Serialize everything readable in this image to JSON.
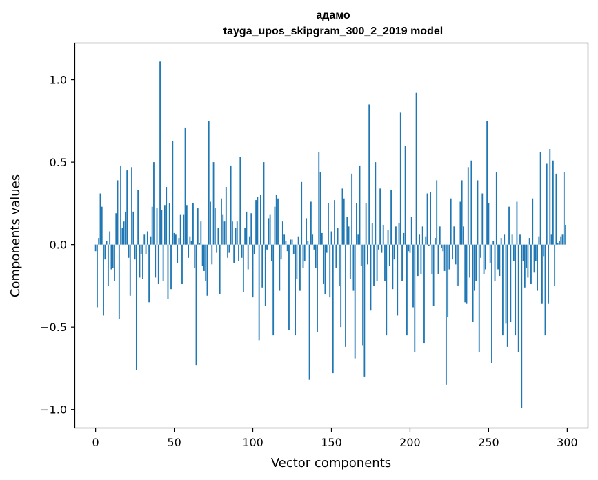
{
  "chart_data": {
    "type": "bar",
    "title": "адамо",
    "subtitle": "tayga_upos_skipgram_300_2_2019 model",
    "xlabel": "Vector components",
    "ylabel": "Components values",
    "xlim": [
      -13,
      313
    ],
    "ylim": [
      -1.11,
      1.22
    ],
    "x_ticks": [
      0,
      50,
      100,
      150,
      200,
      250,
      300
    ],
    "y_ticks": [
      -1.0,
      -0.5,
      0.0,
      0.5,
      1.0
    ],
    "y_tick_labels": [
      "−1.0",
      "−0.5",
      "0.0",
      "0.5",
      "1.0"
    ],
    "bar_color": "#1f77b4",
    "n_components": 300,
    "anchor_values": {
      "0": -0.04,
      "1": -0.38,
      "2": 0.04,
      "3": 0.31,
      "4": 0.23,
      "5": -0.43,
      "6": -0.09,
      "7": 0.02,
      "8": -0.25,
      "9": 0.08,
      "10": -0.15,
      "11": -0.14,
      "12": -0.22,
      "13": 0.19,
      "14": 0.39,
      "15": -0.45,
      "16": 0.48,
      "17": 0.1,
      "18": 0.14,
      "19": 0.2,
      "20": 0.45,
      "21": -0.08,
      "22": -0.31,
      "23": 0.47,
      "24": 0.2,
      "25": -0.09,
      "26": -0.76,
      "27": 0.33,
      "28": -0.2,
      "29": -0.06,
      "30": -0.21,
      "31": 0.06,
      "32": -0.06,
      "33": 0.08,
      "34": -0.35,
      "35": 0.05,
      "36": 0.23,
      "37": 0.5,
      "38": -0.2,
      "39": 0.22,
      "40": -0.24,
      "41": 1.11,
      "42": 0.21,
      "43": -0.22,
      "44": 0.24,
      "45": 0.35,
      "46": -0.33,
      "47": 0.25,
      "48": -0.27,
      "49": 0.63,
      "50": 0.07,
      "51": 0.06,
      "52": -0.11,
      "53": 0.04,
      "54": 0.18,
      "55": -0.24,
      "56": 0.18,
      "57": 0.71,
      "58": 0.24,
      "59": -0.08,
      "60": 0.05,
      "61": 0.02,
      "62": 0.25,
      "63": -0.14,
      "64": -0.73,
      "65": 0.22,
      "66": 0.01,
      "67": 0.14,
      "68": -0.13,
      "69": -0.16,
      "70": -0.22,
      "71": -0.31,
      "72": 0.75,
      "73": 0.26,
      "74": -0.12,
      "75": 0.5,
      "76": 0.22,
      "77": -0.05,
      "78": 0.1,
      "79": -0.3,
      "80": 0.28,
      "81": 0.18,
      "82": 0.14,
      "83": 0.35,
      "84": -0.08,
      "85": -0.05,
      "86": 0.48,
      "87": 0.14,
      "88": -0.11,
      "89": 0.1,
      "90": 0.14,
      "91": -0.1,
      "92": 0.53,
      "93": -0.08,
      "94": -0.29,
      "95": 0.1,
      "96": 0.2,
      "97": -0.15,
      "98": 0.05,
      "99": 0.19,
      "100": -0.32,
      "101": -0.06,
      "102": 0.27,
      "103": 0.29,
      "104": -0.58,
      "105": 0.3,
      "106": -0.26,
      "107": 0.5,
      "108": -0.37,
      "109": -0.03,
      "110": 0.16,
      "111": 0.18,
      "112": -0.1,
      "113": -0.55,
      "114": 0.23,
      "115": 0.3,
      "116": 0.28,
      "117": -0.28,
      "118": -0.09,
      "119": 0.14,
      "120": 0.06,
      "121": 0.02,
      "122": -0.04,
      "123": -0.52,
      "124": 0.03,
      "125": 0.03,
      "126": -0.06,
      "127": -0.55,
      "128": -0.21,
      "129": 0.05,
      "130": -0.28,
      "131": 0.38,
      "132": -0.14,
      "133": -0.1,
      "134": 0.16,
      "135": 0.02,
      "136": -0.82,
      "137": 0.26,
      "138": 0.06,
      "139": -0.03,
      "140": -0.14,
      "141": -0.53,
      "142": 0.56,
      "143": 0.44,
      "144": 0.07,
      "145": -0.24,
      "146": -0.3,
      "147": -0.05,
      "148": 0.25,
      "149": -0.32,
      "150": 0.08,
      "151": -0.78,
      "152": 0.27,
      "153": -0.14,
      "154": 0.1,
      "155": -0.25,
      "156": -0.5,
      "157": 0.34,
      "158": 0.28,
      "159": -0.62,
      "160": 0.17,
      "161": 0.11,
      "162": -0.21,
      "163": 0.43,
      "164": -0.28,
      "165": -0.69,
      "166": 0.25,
      "167": 0.06,
      "168": 0.48,
      "169": -0.13,
      "170": -0.61,
      "171": -0.8,
      "172": 0.25,
      "173": -0.12,
      "174": 0.85,
      "175": -0.4,
      "176": 0.13,
      "177": -0.25,
      "178": 0.5,
      "179": -0.22,
      "180": -0.03,
      "181": 0.34,
      "182": -0.05,
      "183": 0.12,
      "184": -0.22,
      "185": -0.55,
      "186": 0.09,
      "187": -0.13,
      "188": 0.33,
      "189": -0.27,
      "190": -0.09,
      "191": 0.11,
      "192": -0.43,
      "193": 0.13,
      "194": 0.8,
      "195": -0.22,
      "196": 0.07,
      "197": 0.6,
      "198": -0.55,
      "199": -0.04,
      "200": -0.05,
      "201": 0.17,
      "202": -0.38,
      "203": -0.65,
      "204": 0.92,
      "205": -0.19,
      "206": 0.06,
      "207": -0.18,
      "208": 0.11,
      "209": -0.6,
      "210": 0.05,
      "211": 0.31,
      "212": -0.01,
      "213": 0.32,
      "214": -0.18,
      "215": -0.37,
      "216": 0.04,
      "217": 0.39,
      "218": -0.18,
      "219": 0.11,
      "220": -0.02,
      "221": -0.04,
      "222": -0.16,
      "223": -0.85,
      "224": -0.44,
      "225": -0.15,
      "226": 0.28,
      "227": -0.09,
      "228": 0.11,
      "229": -0.12,
      "230": -0.25,
      "231": -0.25,
      "232": 0.26,
      "233": 0.39,
      "234": 0.11,
      "235": -0.35,
      "236": -0.36,
      "237": 0.47,
      "238": -0.2,
      "239": 0.51,
      "240": -0.47,
      "241": -0.28,
      "242": -0.22,
      "243": 0.39,
      "244": -0.65,
      "245": -0.08,
      "246": 0.31,
      "247": -0.18,
      "248": -0.15,
      "249": 0.75,
      "250": 0.25,
      "251": -0.11,
      "252": -0.72,
      "253": 0.02,
      "254": -0.22,
      "255": 0.44,
      "256": -0.15,
      "257": -0.19,
      "258": 0.04,
      "259": -0.55,
      "260": 0.06,
      "261": -0.48,
      "262": -0.62,
      "263": 0.23,
      "264": -0.47,
      "265": 0.06,
      "266": -0.1,
      "267": -0.55,
      "268": 0.26,
      "269": -0.65,
      "270": 0.06,
      "271": -0.99,
      "272": -0.1,
      "273": -0.26,
      "274": -0.14,
      "275": -0.2,
      "276": 0.04,
      "277": -0.24,
      "278": 0.28,
      "279": -0.17,
      "280": -0.1,
      "281": -0.28,
      "282": 0.05,
      "283": 0.56,
      "284": -0.36,
      "285": -0.07,
      "286": -0.55,
      "287": 0.49,
      "288": -0.36,
      "289": 0.58,
      "290": 0.06,
      "291": 0.51,
      "292": -0.25,
      "293": 0.43,
      "294": 0.01,
      "295": 0.02,
      "296": 0.05,
      "297": 0.06,
      "298": 0.44,
      "299": 0.12
    }
  }
}
